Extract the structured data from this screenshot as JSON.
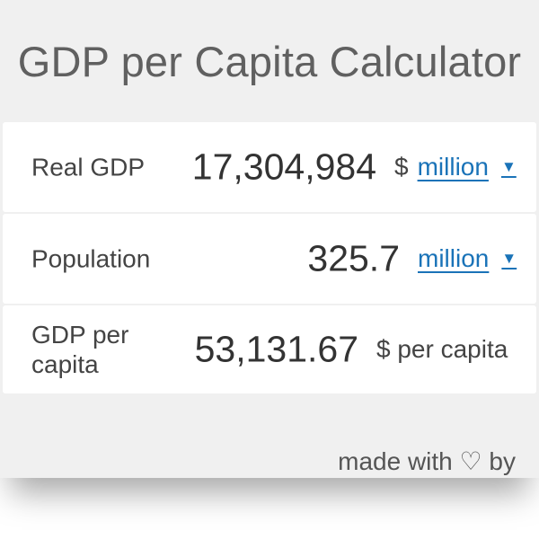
{
  "title": "GDP per Capita Calculator",
  "rows": [
    {
      "label": "Real GDP",
      "value": "17,304,984",
      "currency": "$",
      "unit": "million",
      "caret": "▼"
    },
    {
      "label": "Population",
      "value": "325.7",
      "unit": "million",
      "caret": "▼"
    },
    {
      "label": "GDP per capita",
      "value": "53,131.67",
      "unit": "$ per capita"
    }
  ],
  "footer": "made with ♡ by",
  "colors": {
    "background": "#f0f0f0",
    "card": "#ffffff",
    "link": "#1a73b8",
    "title": "#606060"
  }
}
